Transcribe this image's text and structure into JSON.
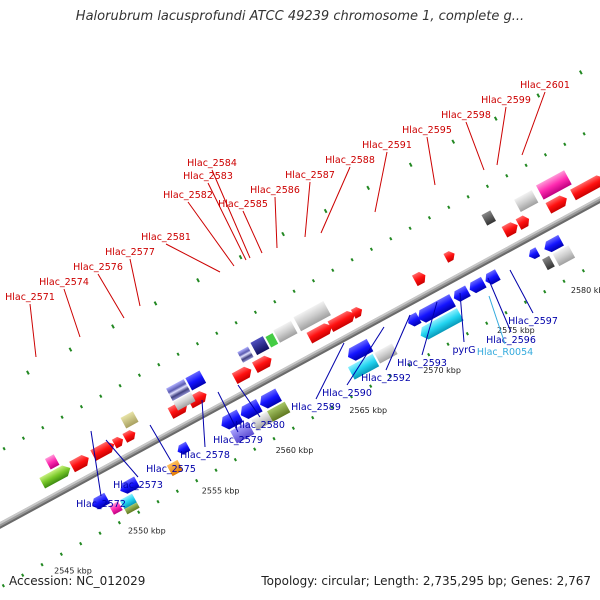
{
  "header": {
    "title": "Halorubrum lacusprofundi ATCC 49239 chromosome 1, complete g..."
  },
  "footer": {
    "accession": "Accession: NC_012029",
    "stats": "Topology: circular; Length: 2,735,295 bp; Genes: 2,767"
  },
  "colors": {
    "forward_label": "#cc0000",
    "reverse_label": "#0000aa",
    "rna_label": "#33aadd",
    "backbone": "#999999",
    "gene_red": "#ff1a1a",
    "gene_blue": "#1a1aff",
    "gene_cyan": "#22ccee",
    "gene_grey": "#cccccc"
  },
  "scale_labels": [
    "2545 kbp",
    "2550 kbp",
    "2555 kbp",
    "2560 kbp",
    "2565 kbp",
    "2570 kbp",
    "2575 kbp",
    "2580 kbp"
  ],
  "forward_genes": [
    "Hlac_2571",
    "Hlac_2574",
    "Hlac_2576",
    "Hlac_2577",
    "Hlac_2581",
    "Hlac_2582",
    "Hlac_2583",
    "Hlac_2584",
    "Hlac_2585",
    "Hlac_2586",
    "Hlac_2587",
    "Hlac_2588",
    "Hlac_2591",
    "Hlac_2595",
    "Hlac_2598",
    "Hlac_2599",
    "Hlac_2601"
  ],
  "reverse_genes": [
    "Hlac_2572",
    "Hlac_2573",
    "Hlac_2575",
    "Hlac_2578",
    "Hlac_2579",
    "Hlac_2580",
    "Hlac_2589",
    "Hlac_2590",
    "Hlac_2592",
    "Hlac_2593",
    "pyrG",
    "Hlac_2596",
    "Hlac_2597"
  ],
  "rna_genes": [
    "Hlac_R0054"
  ]
}
